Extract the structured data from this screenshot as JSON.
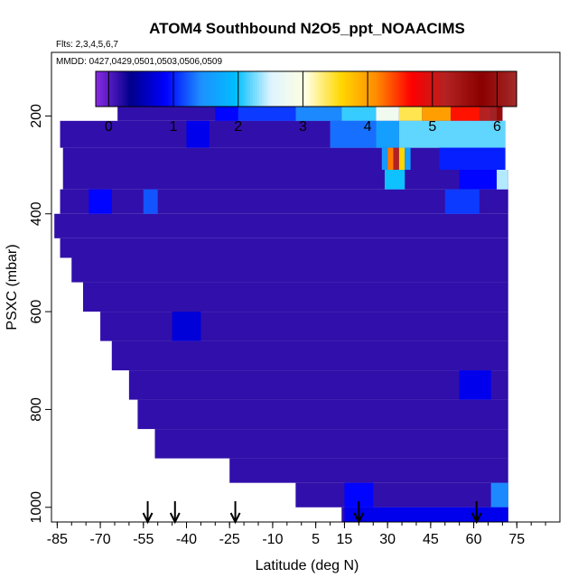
{
  "chart_data": {
    "type": "heatmap",
    "title": "ATOM4 Southbound N2O5_ppt_NOAACIMS",
    "flights_label": "Flts: 2,3,4,5,6,7",
    "dates_label": "MMDD: 0427,0429,0501,0503,0506,0509",
    "xlabel": "Latitude (deg N)",
    "ylabel": "PSXC (mbar)",
    "xlim": [
      -87,
      90
    ],
    "ylim": [
      1030,
      70
    ],
    "x_ticks": [
      "-85",
      "-70",
      "-55",
      "-40",
      "-25",
      "-10",
      "5",
      "15",
      "30",
      "45",
      "60",
      "75"
    ],
    "y_ticks": [
      "200",
      "400",
      "600",
      "800",
      "1000"
    ],
    "colorbar": {
      "min": -0.2,
      "max": 6.3,
      "ticks": [
        "0",
        "1",
        "2",
        "3",
        "4",
        "5",
        "6"
      ],
      "colors": [
        "#8a2be2",
        "#00008b",
        "#0000ff",
        "#1e90ff",
        "#00bfff",
        "#e0f4ff",
        "#ffffe0",
        "#ffd700",
        "#ff8c00",
        "#ff0000",
        "#b22222",
        "#8b0000",
        "#a52a2a"
      ]
    },
    "arrows_latitude": [
      -53.5,
      -44,
      -23,
      20,
      61
    ],
    "background_value": 0.15,
    "bands": [
      {
        "p_top": 170,
        "p_bot": 210,
        "lat_start": -64,
        "lat_end": 70
      },
      {
        "p_top": 210,
        "p_bot": 265,
        "lat_start": -84,
        "lat_end": 71
      },
      {
        "p_top": 265,
        "p_bot": 310,
        "lat_start": -83,
        "lat_end": 71
      },
      {
        "p_top": 310,
        "p_bot": 350,
        "lat_start": -83,
        "lat_end": 72
      },
      {
        "p_top": 350,
        "p_bot": 400,
        "lat_start": -84,
        "lat_end": 72
      },
      {
        "p_top": 400,
        "p_bot": 450,
        "lat_start": -86,
        "lat_end": 72
      },
      {
        "p_top": 450,
        "p_bot": 490,
        "lat_start": -84,
        "lat_end": 72
      },
      {
        "p_top": 490,
        "p_bot": 540,
        "lat_start": -80,
        "lat_end": 72
      },
      {
        "p_top": 540,
        "p_bot": 600,
        "lat_start": -76,
        "lat_end": 72
      },
      {
        "p_top": 600,
        "p_bot": 660,
        "lat_start": -70,
        "lat_end": 72
      },
      {
        "p_top": 660,
        "p_bot": 720,
        "lat_start": -66,
        "lat_end": 72
      },
      {
        "p_top": 720,
        "p_bot": 780,
        "lat_start": -60,
        "lat_end": 72
      },
      {
        "p_top": 780,
        "p_bot": 840,
        "lat_start": -57,
        "lat_end": 72
      },
      {
        "p_top": 840,
        "p_bot": 900,
        "lat_start": -51,
        "lat_end": 72
      },
      {
        "p_top": 900,
        "p_bot": 950,
        "lat_start": -25,
        "lat_end": 72
      },
      {
        "p_top": 950,
        "p_bot": 1000,
        "lat_start": -2,
        "lat_end": 72
      },
      {
        "p_top": 1000,
        "p_bot": 1030,
        "lat_start": 14,
        "lat_end": 72
      }
    ],
    "features": [
      {
        "lat_start": -2,
        "lat_end": 14,
        "p_top": 170,
        "p_bot": 210,
        "value": 1.4
      },
      {
        "lat_start": 14,
        "lat_end": 26,
        "p_top": 170,
        "p_bot": 210,
        "value": 2.1
      },
      {
        "lat_start": 26,
        "lat_end": 34,
        "p_top": 170,
        "p_bot": 210,
        "value": 2.8
      },
      {
        "lat_start": 34,
        "lat_end": 42,
        "p_top": 170,
        "p_bot": 210,
        "value": 3.4
      },
      {
        "lat_start": 42,
        "lat_end": 52,
        "p_top": 170,
        "p_bot": 210,
        "value": 4.0
      },
      {
        "lat_start": 52,
        "lat_end": 62,
        "p_top": 170,
        "p_bot": 210,
        "value": 4.6
      },
      {
        "lat_start": 62,
        "lat_end": 66,
        "p_top": 170,
        "p_bot": 210,
        "value": 5.2
      },
      {
        "lat_start": 66,
        "lat_end": 68,
        "p_top": 170,
        "p_bot": 210,
        "value": 6.2
      },
      {
        "lat_start": 68,
        "lat_end": 70,
        "p_top": 170,
        "p_bot": 210,
        "value": 5.6
      },
      {
        "lat_start": -30,
        "lat_end": -22,
        "p_top": 170,
        "p_bot": 210,
        "value": 0.9
      },
      {
        "lat_start": -22,
        "lat_end": -2,
        "p_top": 170,
        "p_bot": 210,
        "value": 1.1
      },
      {
        "lat_start": 10,
        "lat_end": 26,
        "p_top": 210,
        "p_bot": 265,
        "value": 1.3
      },
      {
        "lat_start": 26,
        "lat_end": 34,
        "p_top": 210,
        "p_bot": 265,
        "value": 1.6
      },
      {
        "lat_start": 34,
        "lat_end": 71,
        "p_top": 210,
        "p_bot": 265,
        "value": 2.2
      },
      {
        "lat_start": -40,
        "lat_end": -32,
        "p_top": 210,
        "p_bot": 265,
        "value": 0.8
      },
      {
        "lat_start": 28,
        "lat_end": 30,
        "p_top": 265,
        "p_bot": 310,
        "value": 1.5
      },
      {
        "lat_start": 30,
        "lat_end": 32,
        "p_top": 265,
        "p_bot": 310,
        "value": 4.2
      },
      {
        "lat_start": 32,
        "lat_end": 34,
        "p_top": 265,
        "p_bot": 310,
        "value": 5.2
      },
      {
        "lat_start": 34,
        "lat_end": 36,
        "p_top": 265,
        "p_bot": 310,
        "value": 3.6
      },
      {
        "lat_start": 36,
        "lat_end": 38,
        "p_top": 265,
        "p_bot": 310,
        "value": 1.6
      },
      {
        "lat_start": 48,
        "lat_end": 71,
        "p_top": 265,
        "p_bot": 310,
        "value": 1.0
      },
      {
        "lat_start": 29,
        "lat_end": 36,
        "p_top": 310,
        "p_bot": 350,
        "value": 2.0
      },
      {
        "lat_start": 55,
        "lat_end": 68,
        "p_top": 310,
        "p_bot": 350,
        "value": 0.9
      },
      {
        "lat_start": 68,
        "lat_end": 72,
        "p_top": 310,
        "p_bot": 350,
        "value": 2.4
      },
      {
        "lat_start": -55,
        "lat_end": -50,
        "p_top": 350,
        "p_bot": 400,
        "value": 1.2
      },
      {
        "lat_start": 50,
        "lat_end": 62,
        "p_top": 350,
        "p_bot": 400,
        "value": 1.1
      },
      {
        "lat_start": -74,
        "lat_end": -66,
        "p_top": 350,
        "p_bot": 400,
        "value": 0.9
      },
      {
        "lat_start": 15,
        "lat_end": 25,
        "p_top": 950,
        "p_bot": 1000,
        "value": 0.9
      },
      {
        "lat_start": 66,
        "lat_end": 72,
        "p_top": 950,
        "p_bot": 1000,
        "value": 1.4
      },
      {
        "lat_start": 15,
        "lat_end": 72,
        "p_top": 1000,
        "p_bot": 1030,
        "value": 0.8
      },
      {
        "lat_start": -45,
        "lat_end": -35,
        "p_top": 600,
        "p_bot": 660,
        "value": 0.7
      },
      {
        "lat_start": 55,
        "lat_end": 66,
        "p_top": 720,
        "p_bot": 780,
        "value": 0.8
      }
    ]
  }
}
